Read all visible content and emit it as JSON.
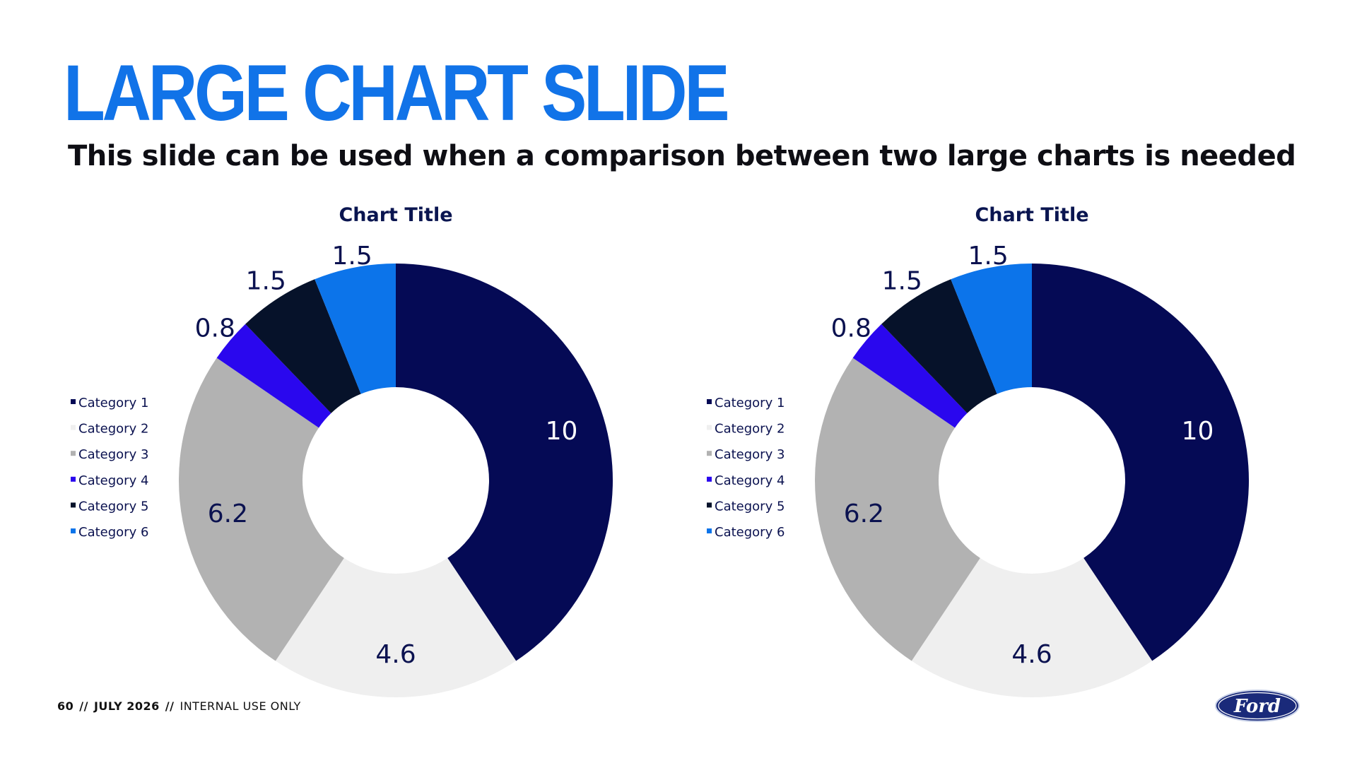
{
  "slide": {
    "title": "LARGE CHART SLIDE",
    "subtitle": "This slide can be used when a comparison between two large charts is needed"
  },
  "footer": {
    "page_number": "60",
    "separator": "//",
    "date": "JULY 2026",
    "classification": "INTERNAL USE ONLY"
  },
  "logo": {
    "text": "Ford",
    "colors": {
      "fill": "#1a2a7a",
      "text": "#ffffff"
    }
  },
  "chart_data": [
    {
      "type": "pie",
      "donut": true,
      "title": "Chart Title",
      "categories": [
        "Category 1",
        "Category 2",
        "Category 3",
        "Category 4",
        "Category 5",
        "Category 6"
      ],
      "values": [
        10,
        4.6,
        6.2,
        0.8,
        1.5,
        1.5
      ],
      "value_labels": [
        "10",
        "4.6",
        "6.2",
        "0.8",
        "1.5",
        "1.5"
      ],
      "colors": [
        "#050a55",
        "#efefef",
        "#b2b2b2",
        "#2a07ee",
        "#06122a",
        "#0c74ea"
      ],
      "legend_position": "left"
    },
    {
      "type": "pie",
      "donut": true,
      "title": "Chart Title",
      "categories": [
        "Category 1",
        "Category 2",
        "Category 3",
        "Category 4",
        "Category 5",
        "Category 6"
      ],
      "values": [
        10,
        4.6,
        6.2,
        0.8,
        1.5,
        1.5
      ],
      "value_labels": [
        "10",
        "4.6",
        "6.2",
        "0.8",
        "1.5",
        "1.5"
      ],
      "colors": [
        "#050a55",
        "#efefef",
        "#b2b2b2",
        "#2a07ee",
        "#06122a",
        "#0c74ea"
      ],
      "legend_position": "left"
    }
  ]
}
